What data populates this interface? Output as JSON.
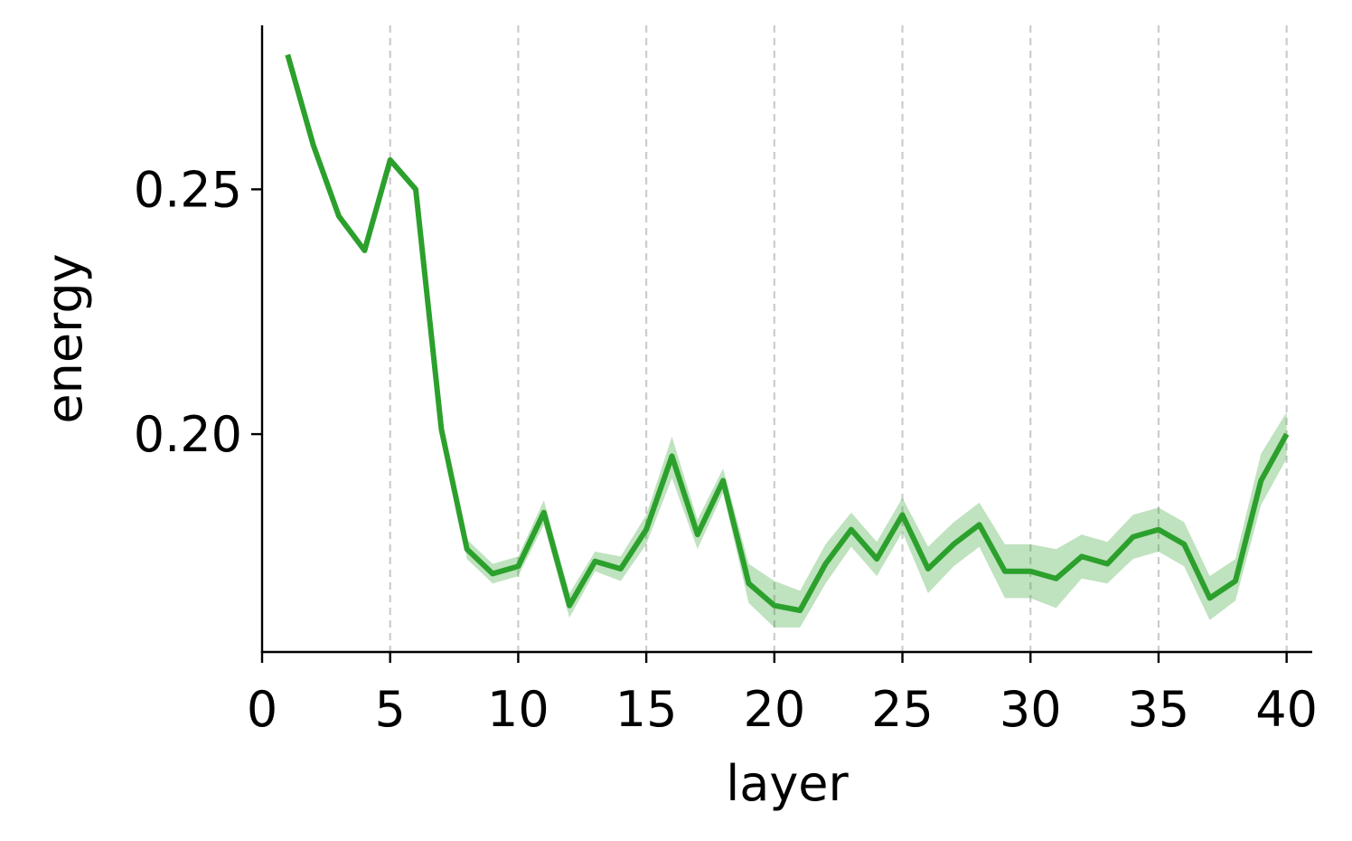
{
  "chart_data": {
    "type": "line",
    "xlabel": "layer",
    "ylabel": "energy",
    "xlim": [
      0,
      41
    ],
    "ylim": [
      0.1555,
      0.2835
    ],
    "xticks": [
      0,
      5,
      10,
      15,
      20,
      25,
      30,
      35,
      40
    ],
    "yticks": [
      0.2,
      0.25
    ],
    "ytick_labels": [
      "0.20",
      "0.25"
    ],
    "vertical_grid": true,
    "horizontal_grid": false,
    "line_color": "#2ca02c",
    "band_color": "#2ca02c",
    "series": [
      {
        "x": [
          1,
          2,
          3,
          4,
          5,
          6,
          7,
          8,
          9,
          10,
          11,
          12,
          13,
          14,
          15,
          16,
          17,
          18,
          19,
          20,
          21,
          22,
          23,
          24,
          25,
          26,
          27,
          28,
          29,
          30,
          31,
          32,
          33,
          34,
          35,
          36,
          37,
          38,
          39,
          40
        ],
        "y": [
          0.2775,
          0.259,
          0.2445,
          0.2375,
          0.256,
          0.25,
          0.201,
          0.1765,
          0.1715,
          0.173,
          0.184,
          0.165,
          0.174,
          0.1725,
          0.1805,
          0.1955,
          0.1795,
          0.1905,
          0.1695,
          0.165,
          0.164,
          0.1735,
          0.1805,
          0.1745,
          0.1835,
          0.1725,
          0.1775,
          0.1815,
          0.172,
          0.172,
          0.1705,
          0.175,
          0.1735,
          0.179,
          0.1805,
          0.1775,
          0.1665,
          0.17,
          0.1905,
          0.2
        ],
        "lower": [
          0.2775,
          0.259,
          0.2445,
          0.2375,
          0.256,
          0.25,
          0.201,
          0.1745,
          0.1695,
          0.171,
          0.1815,
          0.1625,
          0.172,
          0.17,
          0.1775,
          0.191,
          0.1765,
          0.188,
          0.1655,
          0.1605,
          0.1605,
          0.1695,
          0.177,
          0.171,
          0.18,
          0.1675,
          0.173,
          0.177,
          0.1665,
          0.1665,
          0.1645,
          0.1705,
          0.1695,
          0.1745,
          0.176,
          0.173,
          0.162,
          0.166,
          0.1855,
          0.195
        ],
        "upper": [
          0.2775,
          0.259,
          0.2445,
          0.2375,
          0.256,
          0.25,
          0.201,
          0.1785,
          0.1735,
          0.175,
          0.1865,
          0.1675,
          0.176,
          0.175,
          0.1835,
          0.1995,
          0.1825,
          0.193,
          0.1735,
          0.17,
          0.168,
          0.1775,
          0.184,
          0.178,
          0.187,
          0.177,
          0.182,
          0.186,
          0.1775,
          0.1775,
          0.1765,
          0.1795,
          0.178,
          0.1835,
          0.185,
          0.182,
          0.171,
          0.1745,
          0.196,
          0.2045
        ]
      }
    ]
  }
}
